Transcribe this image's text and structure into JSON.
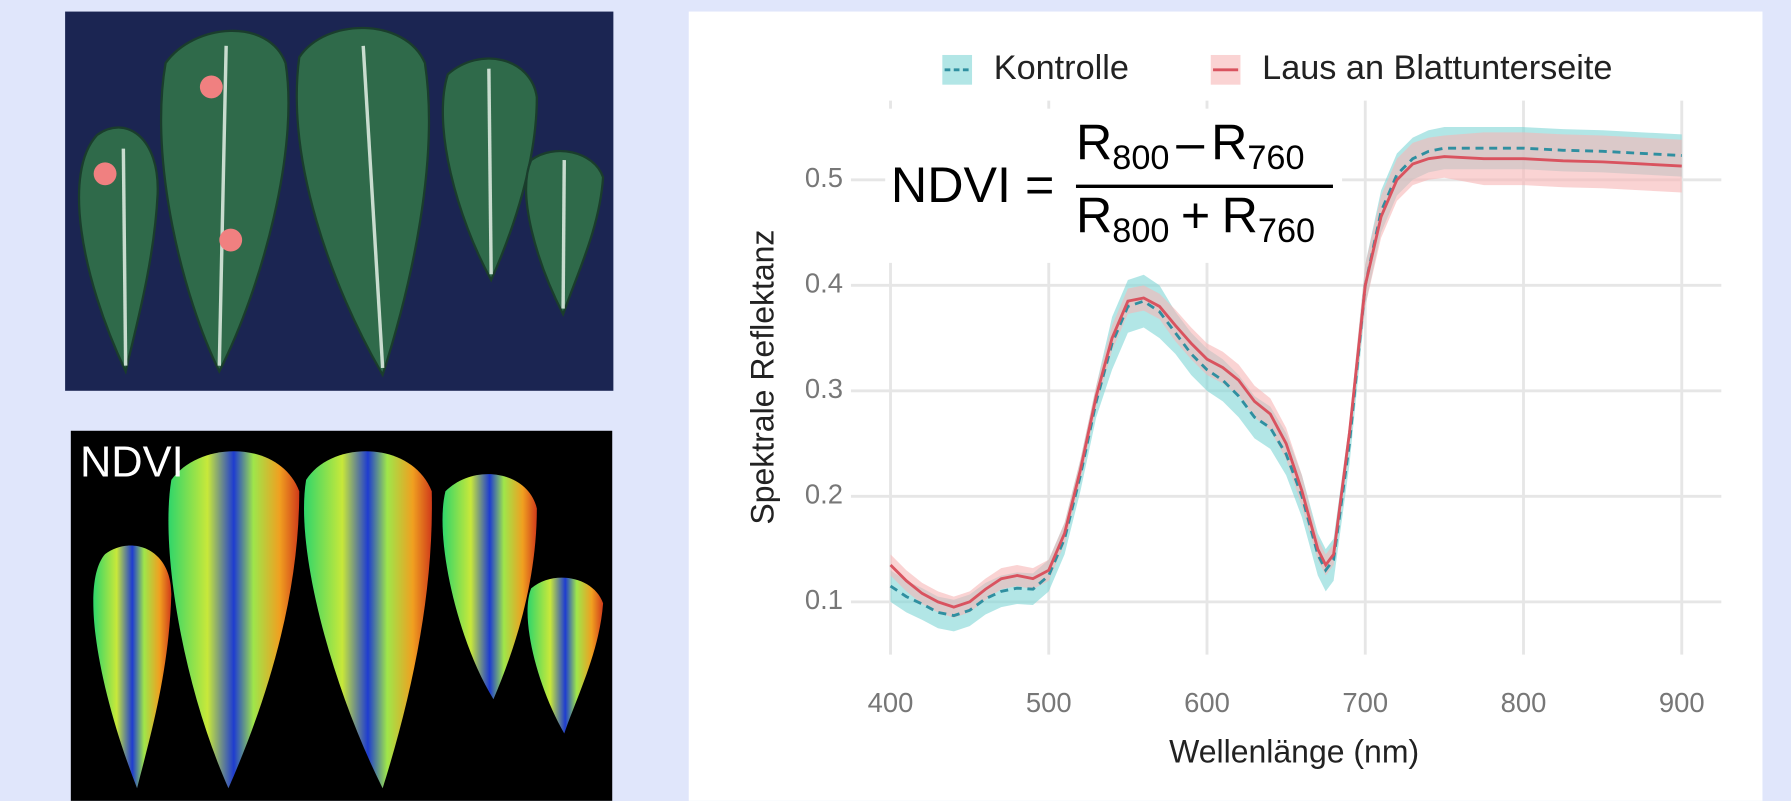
{
  "ndvi_image_label": "NDVI",
  "formula": {
    "lhs": "NDVI =",
    "numerator": {
      "a": "R",
      "a_sub": "800",
      "op": "–",
      "b": "R",
      "b_sub": "760"
    },
    "denominator": {
      "a": "R",
      "a_sub": "800",
      "op": "+",
      "b": "R",
      "b_sub": "760"
    }
  },
  "chart_data": {
    "type": "line",
    "xlabel": "Wellenlänge (nm)",
    "ylabel": "Spektrale Reflektanz",
    "x": [
      400,
      410,
      420,
      430,
      440,
      450,
      460,
      470,
      480,
      490,
      500,
      510,
      520,
      530,
      540,
      550,
      560,
      570,
      580,
      590,
      600,
      610,
      620,
      630,
      640,
      650,
      660,
      670,
      675,
      680,
      690,
      700,
      710,
      720,
      730,
      740,
      750,
      775,
      800,
      825,
      850,
      875,
      900
    ],
    "series": [
      {
        "name": "Kontrolle",
        "color": "#2f8fa0",
        "band_color": "#7fd6d6",
        "line_style": "dashed",
        "values": [
          0.115,
          0.105,
          0.098,
          0.09,
          0.087,
          0.092,
          0.103,
          0.11,
          0.113,
          0.112,
          0.125,
          0.16,
          0.22,
          0.29,
          0.345,
          0.38,
          0.385,
          0.375,
          0.355,
          0.335,
          0.32,
          0.31,
          0.295,
          0.275,
          0.265,
          0.24,
          0.2,
          0.145,
          0.13,
          0.14,
          0.25,
          0.4,
          0.47,
          0.505,
          0.52,
          0.527,
          0.53,
          0.53,
          0.53,
          0.528,
          0.527,
          0.525,
          0.523
        ],
        "errors": [
          0.015,
          0.015,
          0.015,
          0.015,
          0.015,
          0.015,
          0.015,
          0.015,
          0.015,
          0.015,
          0.015,
          0.015,
          0.015,
          0.015,
          0.025,
          0.025,
          0.025,
          0.025,
          0.02,
          0.02,
          0.02,
          0.02,
          0.02,
          0.02,
          0.02,
          0.02,
          0.02,
          0.02,
          0.02,
          0.02,
          0.02,
          0.02,
          0.02,
          0.02,
          0.02,
          0.02,
          0.02,
          0.02,
          0.02,
          0.02,
          0.02,
          0.02,
          0.02
        ]
      },
      {
        "name": "Laus an Blattunterseite",
        "color": "#d9535f",
        "band_color": "#f6b5b5",
        "line_style": "solid",
        "values": [
          0.135,
          0.12,
          0.108,
          0.1,
          0.095,
          0.1,
          0.112,
          0.122,
          0.125,
          0.122,
          0.13,
          0.165,
          0.225,
          0.295,
          0.35,
          0.385,
          0.388,
          0.38,
          0.362,
          0.345,
          0.33,
          0.322,
          0.31,
          0.29,
          0.278,
          0.25,
          0.205,
          0.15,
          0.135,
          0.145,
          0.26,
          0.4,
          0.465,
          0.5,
          0.515,
          0.52,
          0.522,
          0.52,
          0.52,
          0.518,
          0.517,
          0.515,
          0.513
        ],
        "errors": [
          0.01,
          0.01,
          0.01,
          0.01,
          0.01,
          0.01,
          0.01,
          0.01,
          0.01,
          0.01,
          0.01,
          0.01,
          0.01,
          0.01,
          0.012,
          0.012,
          0.012,
          0.012,
          0.015,
          0.015,
          0.015,
          0.015,
          0.015,
          0.015,
          0.015,
          0.015,
          0.015,
          0.01,
          0.01,
          0.01,
          0.01,
          0.02,
          0.02,
          0.02,
          0.02,
          0.02,
          0.02,
          0.025,
          0.025,
          0.025,
          0.025,
          0.025,
          0.025
        ]
      }
    ],
    "xlim": [
      375,
      925
    ],
    "ylim": [
      0.05,
      0.575
    ],
    "xticks": [
      400,
      500,
      600,
      700,
      800,
      900
    ],
    "yticks": [
      0.1,
      0.2,
      0.3,
      0.4,
      0.5
    ],
    "grid": true,
    "legend": "top"
  }
}
